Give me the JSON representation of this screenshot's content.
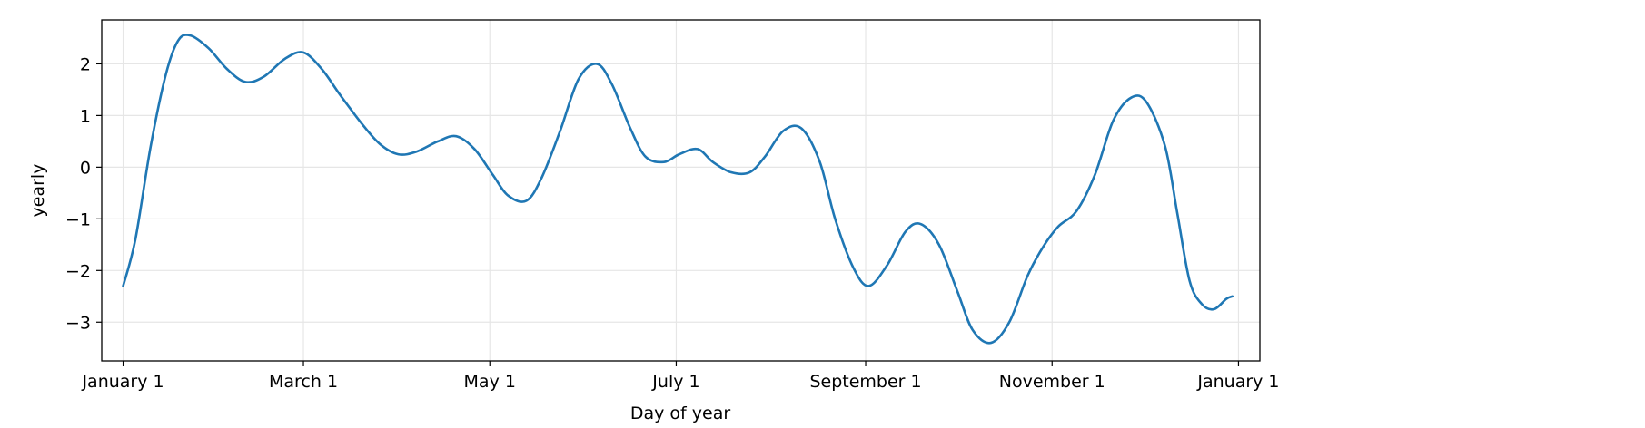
{
  "chart_data": {
    "type": "line",
    "title": "",
    "xlabel": "Day of year",
    "ylabel": "yearly",
    "grid": true,
    "line_color": "#1f77b4",
    "grid_color": "#e6e6e6",
    "xlim": [
      -7,
      372
    ],
    "ylim": [
      -3.75,
      2.85
    ],
    "x_ticks": [
      {
        "day": 0,
        "label": "January 1"
      },
      {
        "day": 59,
        "label": "March 1"
      },
      {
        "day": 120,
        "label": "May 1"
      },
      {
        "day": 181,
        "label": "July 1"
      },
      {
        "day": 243,
        "label": "September 1"
      },
      {
        "day": 304,
        "label": "November 1"
      },
      {
        "day": 365,
        "label": "January 1"
      }
    ],
    "y_ticks": [
      {
        "value": 2,
        "label": "2"
      },
      {
        "value": 1,
        "label": "1"
      },
      {
        "value": 0,
        "label": "0"
      },
      {
        "value": -1,
        "label": "−1"
      },
      {
        "value": -2,
        "label": "−2"
      },
      {
        "value": -3,
        "label": "−3"
      }
    ],
    "series": [
      {
        "x": [
          0,
          4,
          9,
          14,
          18,
          22,
          28,
          34,
          40,
          46,
          53,
          59,
          65,
          71,
          78,
          84,
          90,
          96,
          103,
          109,
          115,
          121,
          126,
          132,
          137,
          143,
          149,
          155,
          160,
          166,
          171,
          177,
          182,
          188,
          193,
          199,
          205,
          210,
          216,
          222,
          228,
          233,
          239,
          244,
          250,
          256,
          261,
          267,
          273,
          278,
          284,
          290,
          296,
          301,
          306,
          312,
          318,
          324,
          330,
          335,
          341,
          345,
          349,
          353,
          357,
          361,
          363
        ],
        "y": [
          -2.3,
          -1.4,
          0.4,
          1.8,
          2.45,
          2.55,
          2.3,
          1.9,
          1.65,
          1.75,
          2.1,
          2.22,
          1.9,
          1.4,
          0.85,
          0.45,
          0.25,
          0.3,
          0.5,
          0.6,
          0.35,
          -0.15,
          -0.55,
          -0.65,
          -0.2,
          0.7,
          1.7,
          2.0,
          1.6,
          0.75,
          0.2,
          0.1,
          0.25,
          0.35,
          0.1,
          -0.1,
          -0.1,
          0.2,
          0.7,
          0.75,
          0.1,
          -1.0,
          -1.95,
          -2.3,
          -1.9,
          -1.25,
          -1.1,
          -1.5,
          -2.4,
          -3.15,
          -3.4,
          -3.0,
          -2.1,
          -1.55,
          -1.15,
          -0.85,
          -0.15,
          0.9,
          1.35,
          1.25,
          0.4,
          -0.9,
          -2.2,
          -2.65,
          -2.75,
          -2.55,
          -2.5
        ]
      }
    ]
  }
}
